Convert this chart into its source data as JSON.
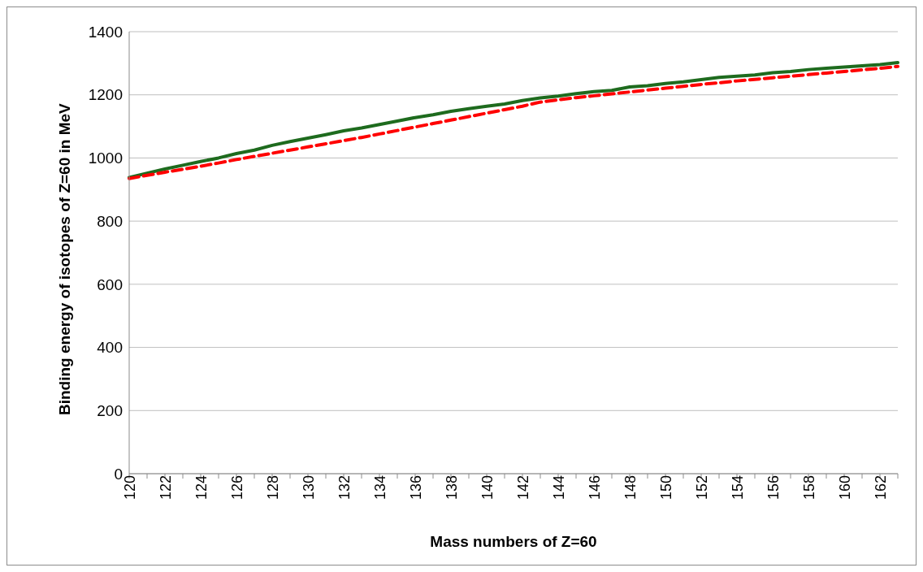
{
  "chart_data": {
    "type": "line",
    "xlabel": "Mass numbers of Z=60",
    "ylabel": "Binding energy of isotopes of Z=60 in MeV",
    "categories": [
      "120",
      null,
      "122",
      null,
      "124",
      null,
      "126",
      null,
      "128",
      null,
      "130",
      null,
      "132",
      null,
      "134",
      null,
      "136",
      null,
      "138",
      null,
      "140",
      null,
      "142",
      null,
      "144",
      null,
      "146",
      null,
      "148",
      null,
      "150",
      null,
      "152",
      null,
      "154",
      null,
      "156",
      null,
      "158",
      null,
      "160",
      null,
      "162",
      null
    ],
    "series": [
      {
        "color": "#1e6b1e",
        "line_style": "solid",
        "values": [
          938,
          952,
          965,
          977,
          989,
          1000,
          1014,
          1025,
          1040,
          1052,
          1063,
          1074,
          1086,
          1095,
          1106,
          1117,
          1128,
          1137,
          1148,
          1156,
          1164,
          1171,
          1182,
          1190,
          1196,
          1204,
          1210,
          1214,
          1225,
          1229,
          1236,
          1241,
          1248,
          1255,
          1259,
          1263,
          1270,
          1274,
          1280,
          1284,
          1288,
          1292,
          1296,
          1302
        ]
      },
      {
        "color": "#ff0000",
        "line_style": "dashed",
        "values": [
          935,
          945,
          955,
          964,
          974,
          984,
          995,
          1005,
          1015,
          1025,
          1035,
          1045,
          1055,
          1065,
          1076,
          1087,
          1098,
          1109,
          1120,
          1131,
          1142,
          1153,
          1164,
          1177,
          1184,
          1191,
          1197,
          1203,
          1209,
          1215,
          1221,
          1227,
          1233,
          1238,
          1244,
          1249,
          1254,
          1259,
          1264,
          1269,
          1274,
          1279,
          1284,
          1290
        ]
      }
    ],
    "ylim": [
      0,
      1400
    ],
    "yticks": [
      0,
      200,
      400,
      600,
      800,
      1000,
      1200,
      1400
    ],
    "grid": "y",
    "legend": false,
    "marker": "none"
  }
}
